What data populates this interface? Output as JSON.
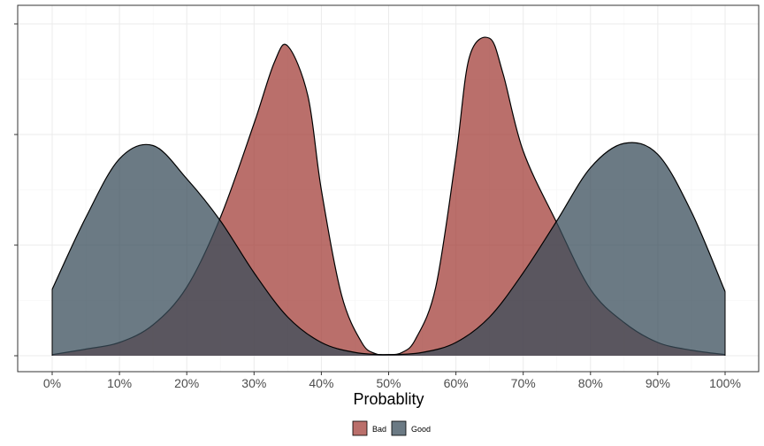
{
  "chart_data": {
    "type": "area",
    "xlabel": "Probablity",
    "ylabel": "",
    "xlim": [
      0,
      1
    ],
    "x_ticks": [
      0,
      0.1,
      0.2,
      0.3,
      0.4,
      0.5,
      0.6,
      0.7,
      0.8,
      0.9,
      1.0
    ],
    "x_tick_labels": [
      "0%",
      "10%",
      "20%",
      "30%",
      "40%",
      "50%",
      "60%",
      "70%",
      "80%",
      "90%",
      "100%"
    ],
    "y_tick_labels_shown": false,
    "grid": true,
    "legend_position": "bottom",
    "series": [
      {
        "name": "Bad",
        "color": "#a33f39",
        "x": [
          0,
          0.05,
          0.1,
          0.15,
          0.2,
          0.25,
          0.3,
          0.33,
          0.35,
          0.38,
          0.4,
          0.43,
          0.46,
          0.48,
          0.5,
          0.52,
          0.54,
          0.57,
          0.6,
          0.62,
          0.65,
          0.67,
          0.7,
          0.75,
          0.8,
          0.85,
          0.9,
          0.95,
          1.0
        ],
        "values": [
          0.01,
          0.06,
          0.12,
          0.28,
          0.62,
          1.25,
          2.1,
          2.65,
          2.8,
          2.35,
          1.5,
          0.55,
          0.12,
          0.02,
          0.01,
          0.03,
          0.15,
          0.62,
          1.8,
          2.7,
          2.87,
          2.55,
          1.85,
          1.2,
          0.6,
          0.3,
          0.12,
          0.05,
          0.01
        ]
      },
      {
        "name": "Good",
        "color": "#3a4e5b",
        "x": [
          0,
          0.05,
          0.1,
          0.15,
          0.2,
          0.25,
          0.3,
          0.35,
          0.4,
          0.45,
          0.5,
          0.55,
          0.6,
          0.65,
          0.7,
          0.75,
          0.8,
          0.85,
          0.9,
          0.95,
          1.0
        ],
        "values": [
          0.6,
          1.25,
          1.78,
          1.9,
          1.6,
          1.22,
          0.75,
          0.35,
          0.12,
          0.03,
          0.01,
          0.03,
          0.12,
          0.35,
          0.75,
          1.22,
          1.7,
          1.92,
          1.82,
          1.3,
          0.58
        ]
      }
    ]
  }
}
